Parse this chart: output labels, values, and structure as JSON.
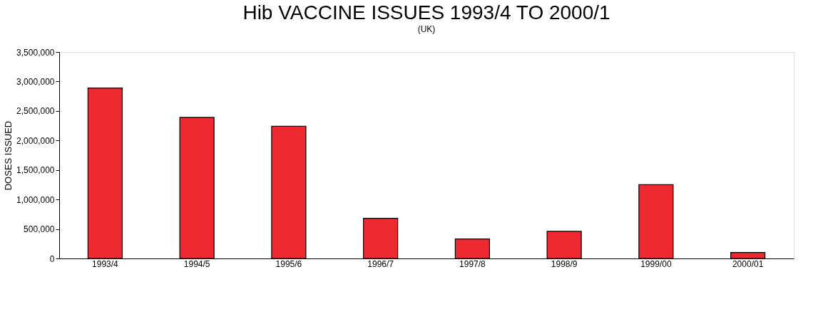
{
  "chart_data": {
    "type": "bar",
    "title": "Hib VACCINE ISSUES 1993/4 TO 2000/1",
    "subtitle": "(UK)",
    "ylabel": "DOSES ISSUED",
    "categories": [
      "1993/4",
      "1994/5",
      "1995/6",
      "1996/7",
      "1997/8",
      "1998/9",
      "1999/00",
      "2000/01"
    ],
    "values": [
      2890000,
      2390000,
      2240000,
      680000,
      330000,
      460000,
      1250000,
      100000
    ],
    "color": "#ee2a30",
    "ylim": [
      0,
      3500000
    ],
    "yticks": [
      0,
      {
        "value": 500000,
        "label": "500,000"
      },
      {
        "value": 1000000,
        "label": "1,000,000"
      },
      {
        "value": 1500000,
        "label": "1,500,000"
      },
      {
        "value": 2000000,
        "label": "2,000,000"
      },
      {
        "value": 2500000,
        "label": "2,500,000"
      },
      {
        "value": 3000000,
        "label": "3,000,000"
      },
      {
        "value": 3500000,
        "label": "3,500,000"
      }
    ],
    "grid": false
  }
}
